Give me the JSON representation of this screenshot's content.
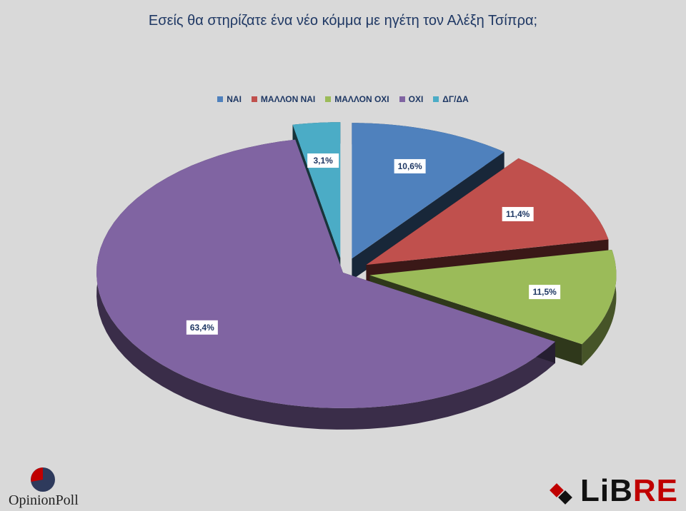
{
  "chart_data": {
    "type": "pie",
    "title": "Εσείς θα στηρίζατε  ένα νέο κόμμα με ηγέτη τον Αλέξη Τσίπρα;",
    "legend_position": "top",
    "slices": [
      {
        "label": "ΝΑΙ",
        "value": 10.6,
        "value_label": "10,6%",
        "color": "#4f81bd",
        "exploded": true
      },
      {
        "label": "ΜΑΛΛΟΝ ΝΑΙ",
        "value": 11.4,
        "value_label": "11,4%",
        "color": "#c0504d",
        "exploded": true
      },
      {
        "label": "ΜΑΛΛΟΝ ΟΧΙ",
        "value": 11.5,
        "value_label": "11,5%",
        "color": "#9bbb59",
        "exploded": true
      },
      {
        "label": "ΟΧΙ",
        "value": 63.4,
        "value_label": "63,4%",
        "color": "#8064a2",
        "exploded": false
      },
      {
        "label": "ΔΓ/ΔΑ",
        "value": 3.1,
        "value_label": "3,1%",
        "color": "#4bacc6",
        "exploded": true
      }
    ]
  },
  "branding": {
    "left_logo_text": "OpinionPoll",
    "left_logo_part1": "Opinion",
    "left_logo_part2": "Poll",
    "right_logo_text": "LiBRE",
    "right_logo_part1": "LiB",
    "right_logo_part2": "RE"
  }
}
